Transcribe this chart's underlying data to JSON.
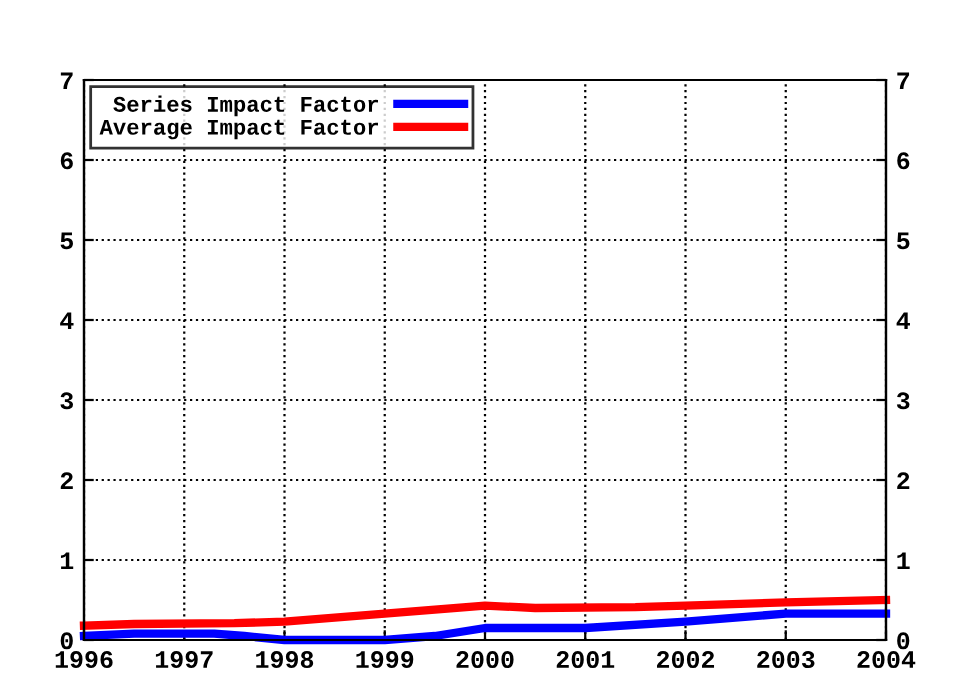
{
  "chart_data": {
    "type": "line",
    "series": [
      {
        "name": "Series Impact Factor",
        "color": "#0000ff",
        "x": [
          1996,
          1996.5,
          1997.3,
          1997.6,
          1998,
          1999,
          1999.5,
          2000,
          2001,
          2002,
          2003,
          2004
        ],
        "values": [
          0.05,
          0.08,
          0.08,
          0.05,
          0,
          0,
          0.05,
          0.15,
          0.15,
          0.23,
          0.33,
          0.33
        ]
      },
      {
        "name": "Average Impact Factor",
        "color": "#ff0000",
        "x": [
          1996,
          1996.5,
          1997.5,
          1998,
          1999,
          2000,
          2000.5,
          2001.5,
          2002,
          2003,
          2004
        ],
        "values": [
          0.18,
          0.2,
          0.21,
          0.23,
          0.33,
          0.43,
          0.4,
          0.41,
          0.43,
          0.47,
          0.5
        ]
      }
    ],
    "xlim": [
      1996,
      2004
    ],
    "xticks": [
      1996,
      1997,
      1998,
      1999,
      2000,
      2001,
      2002,
      2003,
      2004
    ],
    "ylim": [
      0,
      7
    ],
    "yticks": [
      0,
      1,
      2,
      3,
      4,
      5,
      6,
      7
    ],
    "y2lim": [
      0,
      7
    ],
    "y2ticks": [
      0,
      1,
      2,
      3,
      4,
      5,
      6,
      7
    ],
    "grid": true,
    "legend": "top left",
    "marker": "none",
    "line_style": "solid"
  }
}
